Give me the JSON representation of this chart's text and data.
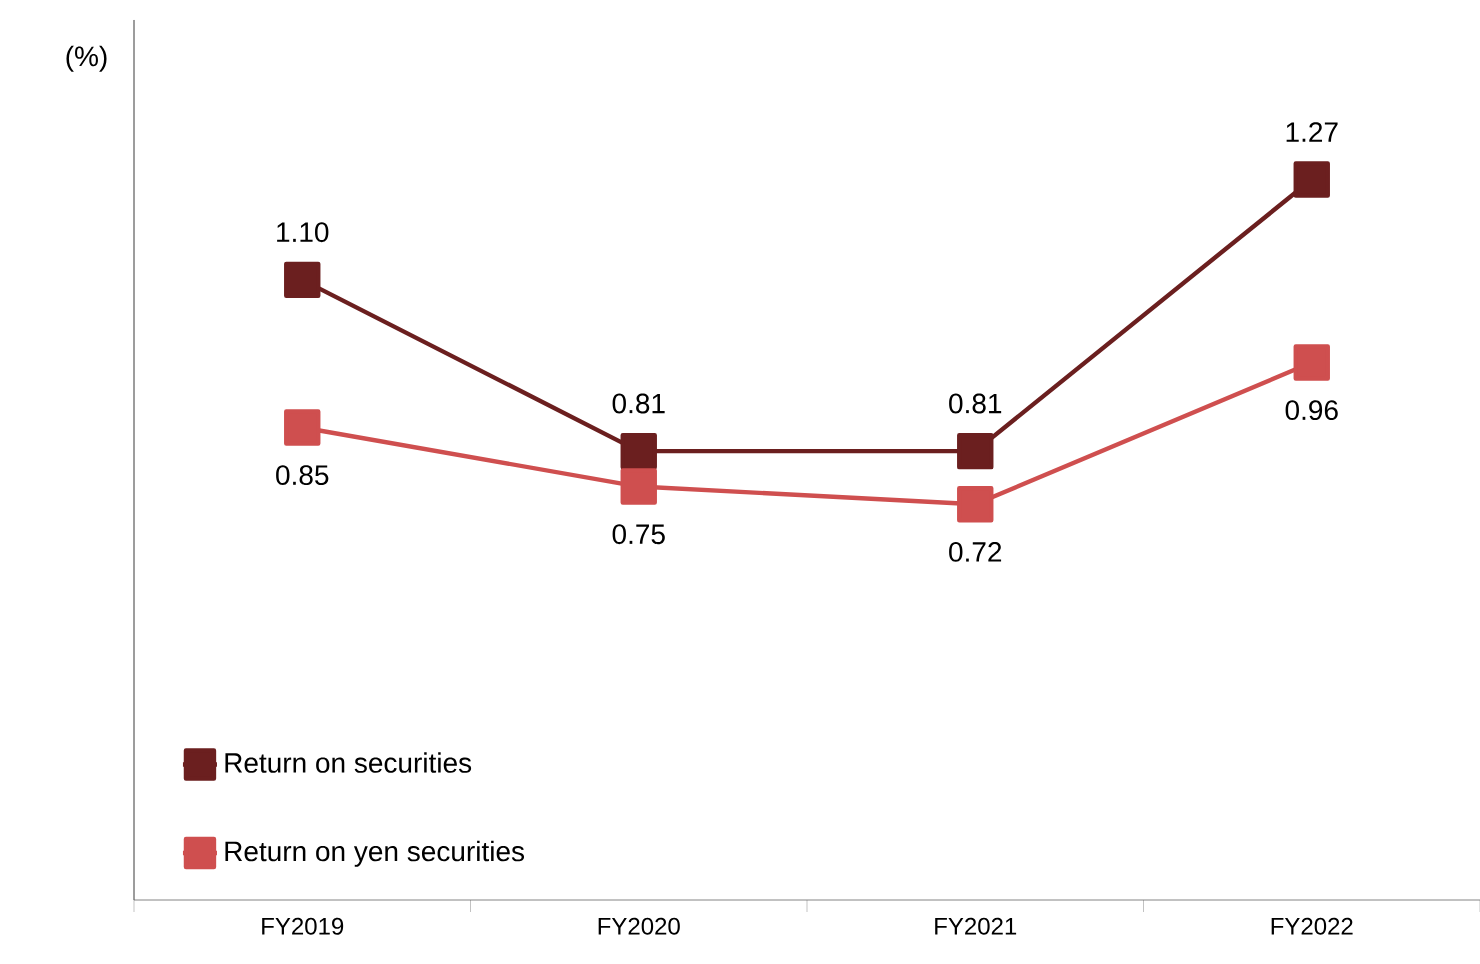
{
  "chart_data": {
    "type": "line",
    "ylabel": "(%)",
    "categories": [
      "FY2019",
      "FY2020",
      "FY2021",
      "FY2022"
    ],
    "series": [
      {
        "name": "Return on securities",
        "color": "#6b1f1f",
        "values": [
          1.1,
          0.81,
          0.81,
          1.27
        ],
        "value_labels": [
          "1.10",
          "0.81",
          "0.81",
          "1.27"
        ]
      },
      {
        "name": "Return on yen securities",
        "color": "#cf4f4f",
        "values": [
          0.85,
          0.75,
          0.72,
          0.96
        ],
        "value_labels": [
          "0.85",
          "0.75",
          "0.72",
          "0.96"
        ]
      }
    ],
    "ylim": [
      0.05,
      1.54
    ],
    "legend": "bottom left",
    "marker": "square",
    "line_style": "solid",
    "grid": false
  }
}
